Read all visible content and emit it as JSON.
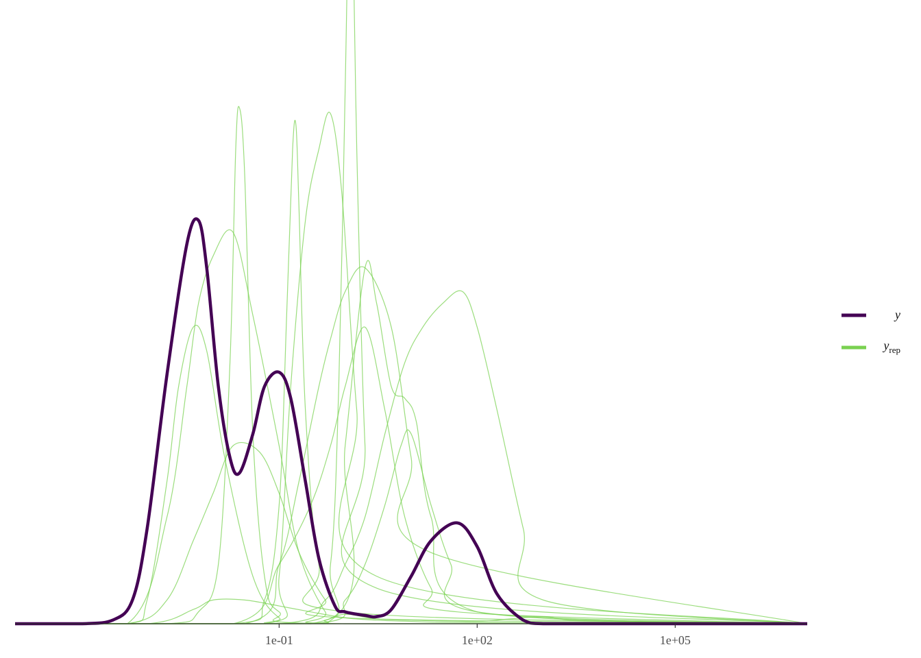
{
  "chart_data": {
    "type": "line",
    "title": "",
    "xlabel": "",
    "ylabel": "",
    "x_scale": "log10",
    "xlim": [
      1e-05,
      10000000
    ],
    "ylim": [
      0,
      0.52
    ],
    "grid": false,
    "legend_position": "right",
    "x_ticks": [
      {
        "value": 0.1,
        "label": "1e-01"
      },
      {
        "value": 100,
        "label": "1e+02"
      },
      {
        "value": 100000,
        "label": "1e+05"
      }
    ],
    "colors": {
      "y": "#440154",
      "y_rep": "#7ad151"
    },
    "legend": [
      {
        "key": "y",
        "label": "y",
        "subscript": "",
        "color": "#440154"
      },
      {
        "key": "y_rep",
        "label": "y",
        "subscript": "rep",
        "color": "#7ad151"
      }
    ],
    "series": [
      {
        "name": "y",
        "x": [
          1e-05,
          0.0001,
          0.0003,
          0.0006,
          0.001,
          0.002,
          0.004,
          0.006,
          0.008,
          0.012,
          0.018,
          0.025,
          0.04,
          0.06,
          0.1,
          0.15,
          0.25,
          0.4,
          0.7,
          1,
          2,
          3,
          5,
          10,
          20,
          50,
          100,
          200,
          500,
          1000,
          10000,
          10000000
        ],
        "y": [
          0,
          0,
          0.003,
          0.02,
          0.08,
          0.21,
          0.32,
          0.34,
          0.3,
          0.2,
          0.14,
          0.127,
          0.16,
          0.2,
          0.212,
          0.19,
          0.12,
          0.055,
          0.015,
          0.01,
          0.007,
          0.006,
          0.012,
          0.04,
          0.07,
          0.085,
          0.065,
          0.025,
          0.003,
          0,
          0,
          0
        ]
      },
      {
        "name": "y_rep_1",
        "x": [
          1e-05,
          0.002,
          0.006,
          0.012,
          0.018,
          0.022,
          0.025,
          0.03,
          0.04,
          0.06,
          0.1,
          0.5,
          10000000
        ],
        "y": [
          0,
          0,
          0.01,
          0.05,
          0.22,
          0.4,
          0.435,
          0.38,
          0.16,
          0.04,
          0.01,
          0,
          0
        ]
      },
      {
        "name": "y_rep_2",
        "x": [
          1e-05,
          0.02,
          0.06,
          0.1,
          0.13,
          0.16,
          0.18,
          0.2,
          0.25,
          0.4,
          1,
          10000000
        ],
        "y": [
          0,
          0,
          0.02,
          0.1,
          0.26,
          0.4,
          0.42,
          0.35,
          0.18,
          0.05,
          0.01,
          0
        ]
      },
      {
        "name": "y_rep_3",
        "x": [
          1e-05,
          0.3,
          0.6,
          0.8,
          1,
          1.15,
          1.3,
          1.5,
          2,
          3,
          10000000
        ],
        "y": [
          0,
          0,
          0.05,
          0.2,
          0.45,
          0.62,
          0.6,
          0.4,
          0.15,
          0.03,
          0
        ]
      },
      {
        "name": "y_rep_4",
        "x": [
          1e-05,
          0.06,
          0.1,
          0.15,
          0.25,
          0.4,
          0.6,
          0.9,
          1.5,
          3,
          10000000
        ],
        "y": [
          0,
          0,
          0.04,
          0.2,
          0.34,
          0.4,
          0.43,
          0.36,
          0.18,
          0.04,
          0
        ]
      },
      {
        "name": "y_rep_5",
        "x": [
          1e-05,
          0.0005,
          0.002,
          0.004,
          0.006,
          0.01,
          0.02,
          0.04,
          0.1,
          0.2,
          0.5,
          1,
          10000000
        ],
        "y": [
          0,
          0,
          0.09,
          0.2,
          0.27,
          0.31,
          0.33,
          0.26,
          0.15,
          0.06,
          0.01,
          0,
          0
        ]
      },
      {
        "name": "y_rep_6",
        "x": [
          1e-05,
          0.0005,
          0.001,
          0.002,
          0.003,
          0.005,
          0.008,
          0.015,
          0.04,
          0.1,
          0.3,
          10000000
        ],
        "y": [
          0,
          0,
          0.02,
          0.12,
          0.2,
          0.25,
          0.23,
          0.14,
          0.04,
          0.005,
          0,
          0
        ]
      },
      {
        "name": "y_rep_7",
        "x": [
          1e-05,
          0.0005,
          0.002,
          0.005,
          0.01,
          0.02,
          0.05,
          0.1,
          0.2,
          0.5,
          1,
          10000000
        ],
        "y": [
          0,
          0,
          0.02,
          0.07,
          0.11,
          0.15,
          0.145,
          0.11,
          0.06,
          0.02,
          0.005,
          0
        ]
      },
      {
        "name": "y_rep_8",
        "x": [
          1e-05,
          0.03,
          0.1,
          0.2,
          0.4,
          0.6,
          1,
          2,
          5,
          10,
          20,
          10000000
        ],
        "y": [
          0,
          0,
          0.05,
          0.12,
          0.2,
          0.24,
          0.28,
          0.3,
          0.25,
          0.14,
          0.06,
          0
        ]
      },
      {
        "name": "y_rep_9",
        "x": [
          1e-05,
          0.02,
          0.1,
          0.3,
          0.6,
          1,
          2,
          4,
          8,
          20,
          50,
          10000000
        ],
        "y": [
          0,
          0,
          0.05,
          0.1,
          0.15,
          0.2,
          0.25,
          0.18,
          0.09,
          0.03,
          0.01,
          0
        ]
      },
      {
        "name": "y_rep_10",
        "x": [
          1e-05,
          0.1,
          0.5,
          1,
          2,
          4,
          8,
          15,
          30,
          60,
          100,
          200,
          500,
          1000,
          10000000
        ],
        "y": [
          0,
          0,
          0.02,
          0.05,
          0.09,
          0.16,
          0.22,
          0.25,
          0.27,
          0.28,
          0.25,
          0.18,
          0.08,
          0.02,
          0
        ]
      },
      {
        "name": "y_rep_11",
        "x": [
          1e-05,
          0.3,
          1,
          2,
          4,
          7,
          10,
          20,
          40,
          100,
          10000000
        ],
        "y": [
          0,
          0,
          0.02,
          0.05,
          0.1,
          0.15,
          0.16,
          0.1,
          0.05,
          0.01,
          0
        ]
      },
      {
        "name": "y_rep_12",
        "x": [
          1e-05,
          0.5,
          1,
          2,
          3,
          5,
          8,
          12,
          20,
          100,
          10000000
        ],
        "y": [
          0,
          0,
          0.15,
          0.3,
          0.27,
          0.2,
          0.19,
          0.17,
          0.09,
          0.01,
          0
        ]
      },
      {
        "name": "y_rep_13",
        "x": [
          1e-05,
          0.001,
          0.005,
          0.01,
          0.03,
          0.1,
          0.3,
          1,
          3,
          10,
          100,
          10000000
        ],
        "y": [
          0,
          0,
          0.012,
          0.02,
          0.02,
          0.015,
          0.01,
          0.005,
          0.003,
          0.002,
          0.001,
          0
        ]
      },
      {
        "name": "y_rep_14",
        "x": [
          1e-05,
          0.2,
          0.5,
          1,
          3,
          10,
          100,
          300,
          1000,
          3000,
          100000,
          10000000
        ],
        "y": [
          0,
          0,
          0.003,
          0.008,
          0.004,
          0.003,
          0.002,
          0.004,
          0.006,
          0.003,
          0.001,
          0
        ]
      }
    ]
  }
}
